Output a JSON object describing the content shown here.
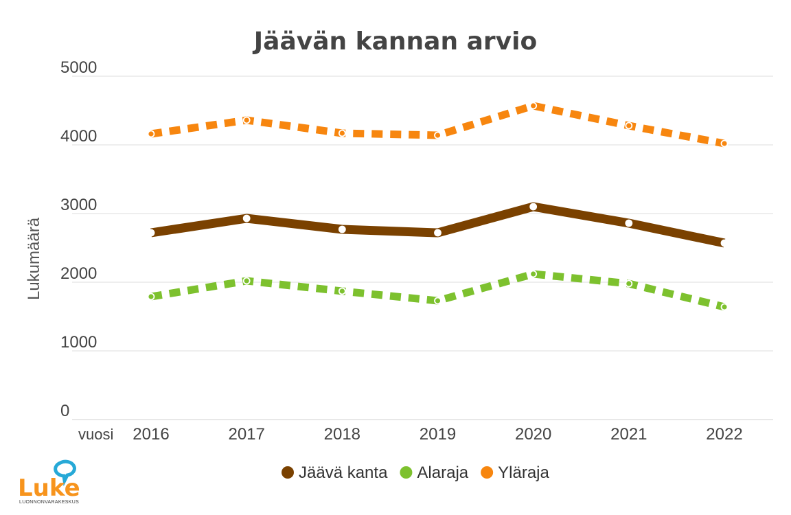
{
  "chart_data": {
    "type": "line",
    "title": "Jäävän kannan arvio",
    "xlabel": "vuosi",
    "ylabel": "Lukumäärä",
    "categories": [
      "2016",
      "2017",
      "2018",
      "2019",
      "2020",
      "2021",
      "2022"
    ],
    "ylim": [
      0,
      5000
    ],
    "yticks": [
      "0",
      "1000",
      "2000",
      "3000",
      "4000",
      "5000"
    ],
    "grid": true,
    "legend_position": "bottom",
    "series": [
      {
        "name": "Jäävä kanta",
        "values": [
          2720,
          2930,
          2770,
          2720,
          3100,
          2860,
          2570
        ],
        "color": "#7a4100",
        "style": "solid"
      },
      {
        "name": "Alaraja",
        "values": [
          1790,
          2020,
          1870,
          1730,
          2120,
          1980,
          1640
        ],
        "color": "#7dc12e",
        "style": "dotted"
      },
      {
        "name": "Yläraja",
        "values": [
          4160,
          4360,
          4170,
          4140,
          4570,
          4280,
          4020
        ],
        "color": "#f7860f",
        "style": "dotted"
      }
    ]
  },
  "logo": {
    "name": "Luke",
    "subtitle": "LUONNONVARAKESKUS",
    "colors": {
      "text": "#f7941d",
      "bubble": "#27a9d7"
    }
  }
}
